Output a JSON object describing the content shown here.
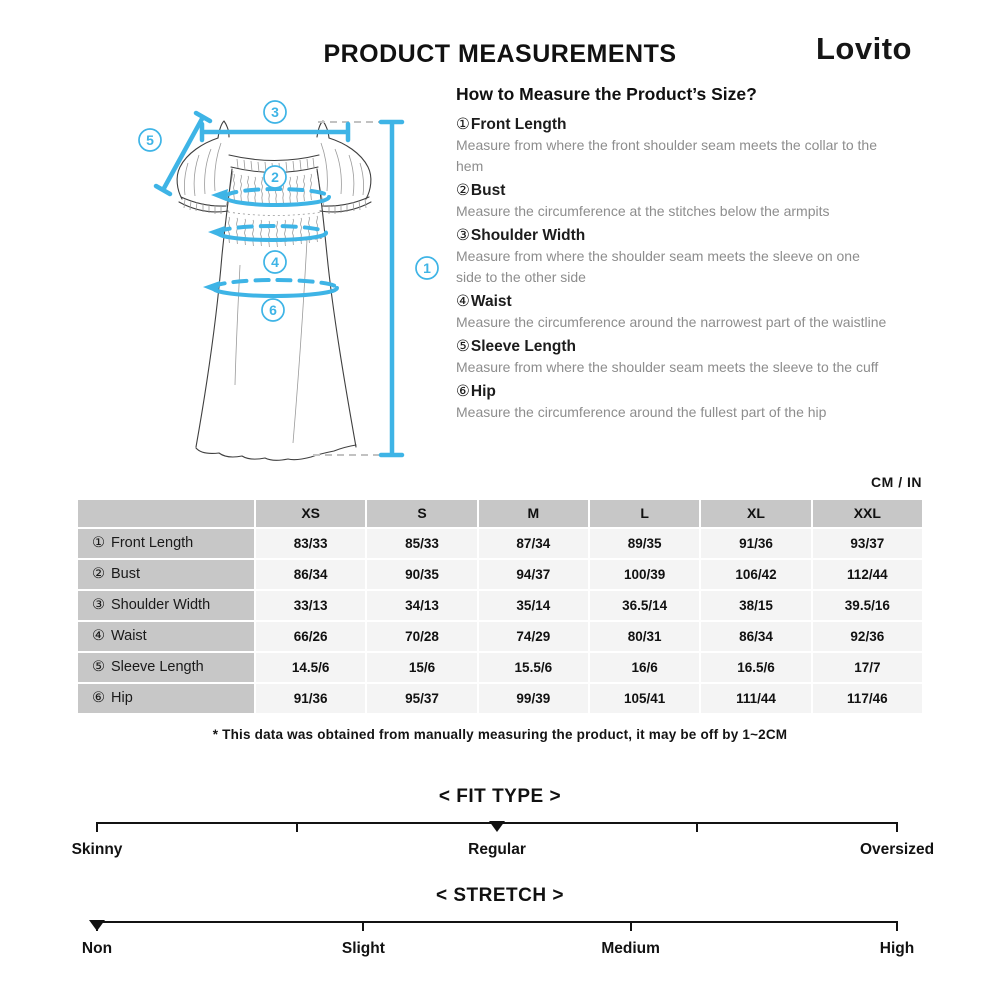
{
  "header": {
    "title": "PRODUCT MEASUREMENTS",
    "brand": "Lovito"
  },
  "how_to": {
    "heading": "How to Measure the Product’s Size?",
    "items": [
      {
        "num": "①",
        "label": "Front Length",
        "desc": "Measure from where the front shoulder seam meets the collar to the hem"
      },
      {
        "num": "②",
        "label": "Bust",
        "desc": "Measure the circumference at the stitches below the armpits"
      },
      {
        "num": "③",
        "label": "Shoulder Width",
        "desc": "Measure from where the shoulder seam meets the sleeve on one side to the other side"
      },
      {
        "num": "④",
        "label": "Waist",
        "desc": "Measure the circumference around the narrowest part of the waistline"
      },
      {
        "num": "⑤",
        "label": "Sleeve Length",
        "desc": "Measure from where the shoulder seam meets the sleeve to the cuff"
      },
      {
        "num": "⑥",
        "label": "Hip",
        "desc": "Measure the circumference around the fullest part of the hip"
      }
    ]
  },
  "diagram": {
    "accent": "#3eb4e6",
    "nums": [
      "1",
      "2",
      "3",
      "4",
      "5",
      "6"
    ]
  },
  "table": {
    "unit_label": "CM / IN",
    "columns": [
      "XS",
      "S",
      "M",
      "L",
      "XL",
      "XXL"
    ],
    "rows": [
      {
        "num": "①",
        "label": "Front Length",
        "values": [
          "83/33",
          "85/33",
          "87/34",
          "89/35",
          "91/36",
          "93/37"
        ]
      },
      {
        "num": "②",
        "label": "Bust",
        "values": [
          "86/34",
          "90/35",
          "94/37",
          "100/39",
          "106/42",
          "112/44"
        ]
      },
      {
        "num": "③",
        "label": "Shoulder Width",
        "values": [
          "33/13",
          "34/13",
          "35/14",
          "36.5/14",
          "38/15",
          "39.5/16"
        ]
      },
      {
        "num": "④",
        "label": "Waist",
        "values": [
          "66/26",
          "70/28",
          "74/29",
          "80/31",
          "86/34",
          "92/36"
        ]
      },
      {
        "num": "⑤",
        "label": "Sleeve Length",
        "values": [
          "14.5/6",
          "15/6",
          "15.5/6",
          "16/6",
          "16.5/6",
          "17/7"
        ]
      },
      {
        "num": "⑥",
        "label": "Hip",
        "values": [
          "91/36",
          "95/37",
          "99/39",
          "105/41",
          "111/44",
          "117/46"
        ]
      }
    ],
    "footnote": "* This data was obtained from manually measuring the product, it may be off by 1~2CM"
  },
  "scales": [
    {
      "title": "< FIT TYPE >",
      "pointer": 50,
      "ticks": [
        0,
        25,
        75,
        100
      ],
      "labels": [
        {
          "text": "Skinny",
          "pos": 0
        },
        {
          "text": "Regular",
          "pos": 50
        },
        {
          "text": "Oversized",
          "pos": 100
        }
      ]
    },
    {
      "title": "< STRETCH >",
      "pointer": 0,
      "ticks": [
        0,
        33.3,
        66.7,
        100
      ],
      "labels": [
        {
          "text": "Non",
          "pos": 0
        },
        {
          "text": "Slight",
          "pos": 33.3
        },
        {
          "text": "Medium",
          "pos": 66.7
        },
        {
          "text": "High",
          "pos": 100
        }
      ]
    }
  ]
}
